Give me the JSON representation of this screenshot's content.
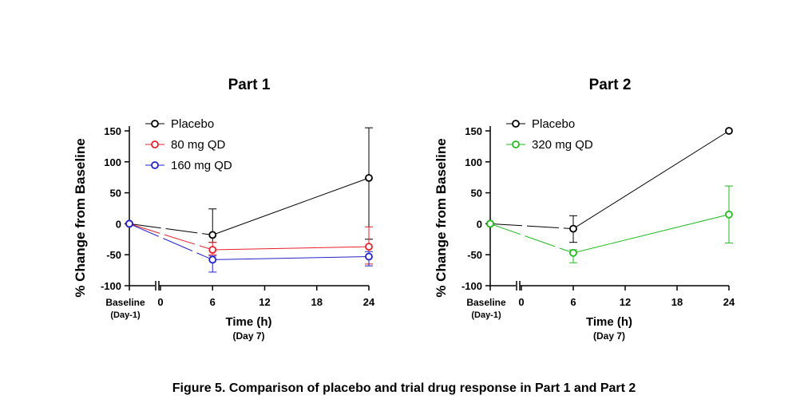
{
  "caption": "Figure 5. Comparison of placebo and trial drug response in Part 1 and Part 2",
  "chart_data": [
    {
      "type": "line",
      "title": "Part 1",
      "ylabel": "% Change from Baseline",
      "xlabel": "Time (h)",
      "xlabel_sub": "(Day 7)",
      "baseline_label": "Baseline",
      "baseline_sub": "(Day-1)",
      "x_ticks": [
        0,
        6,
        12,
        18,
        24
      ],
      "y_ticks": [
        -100,
        -50,
        0,
        50,
        100,
        150
      ],
      "ylim": [
        -100,
        150
      ],
      "xlim": [
        0,
        24
      ],
      "legend_position": "top-left",
      "series": [
        {
          "name": "Placebo",
          "color": "#000000",
          "baseline": 0,
          "x": [
            6,
            24
          ],
          "values": [
            -18,
            74
          ],
          "err_low": [
            -30,
            -25
          ],
          "err_high": [
            24,
            155
          ]
        },
        {
          "name": "80 mg QD",
          "color": "#e8202a",
          "baseline": 0,
          "x": [
            6,
            24
          ],
          "values": [
            -42,
            -37
          ],
          "err_low": [
            -50,
            -65
          ],
          "err_high": [
            -30,
            -5
          ]
        },
        {
          "name": "160 mg QD",
          "color": "#2222cc",
          "baseline": 0,
          "x": [
            6,
            24
          ],
          "values": [
            -58,
            -53
          ],
          "err_low": [
            -78,
            -68
          ],
          "err_high": [
            -52,
            -45
          ]
        }
      ]
    },
    {
      "type": "line",
      "title": "Part 2",
      "ylabel": "% Change from Baseline",
      "xlabel": "Time (h)",
      "xlabel_sub": "(Day 7)",
      "baseline_label": "Baseline",
      "baseline_sub": "(Day-1)",
      "x_ticks": [
        0,
        6,
        12,
        18,
        24
      ],
      "y_ticks": [
        -100,
        -50,
        0,
        50,
        100,
        150
      ],
      "ylim": [
        -100,
        150
      ],
      "xlim": [
        0,
        24
      ],
      "legend_position": "top-left",
      "series": [
        {
          "name": "Placebo",
          "color": "#000000",
          "baseline": 0,
          "x": [
            6,
            24
          ],
          "values": [
            -8,
            150
          ],
          "err_low": [
            -30,
            150
          ],
          "err_high": [
            13,
            150
          ]
        },
        {
          "name": "320 mg QD",
          "color": "#22bb22",
          "baseline": 0,
          "x": [
            6,
            24
          ],
          "values": [
            -47,
            15
          ],
          "err_low": [
            -63,
            -31
          ],
          "err_high": [
            -42,
            61
          ]
        }
      ]
    }
  ]
}
